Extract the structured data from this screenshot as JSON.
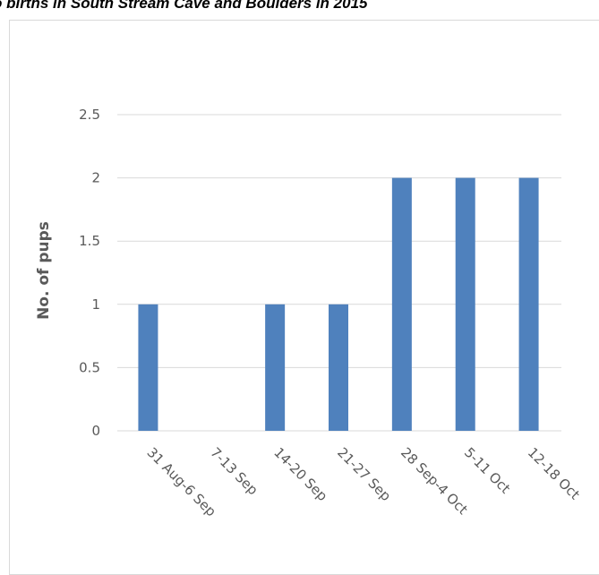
{
  "title": "o births in South Stream Cave and Boulders in 2015",
  "chart_data": {
    "type": "bar",
    "title": "o births in South Stream Cave and Boulders in 2015",
    "xlabel": "",
    "ylabel": "No. of pups",
    "categories": [
      "31 Aug-6 Sep",
      "7-13 Sep",
      "14-20 Sep",
      "21-27 Sep",
      "28 Sep-4 Oct",
      "5-11 Oct",
      "12-18 Oct"
    ],
    "values": [
      1,
      0,
      1,
      1,
      2,
      2,
      2
    ],
    "y_ticks": [
      "0",
      "0.5",
      "1",
      "1.5",
      "2",
      "2.5"
    ],
    "ylim": [
      0,
      2.5
    ],
    "grid": true,
    "bar_color": "#4f81bd",
    "grid_color": "#d9d9d9"
  }
}
